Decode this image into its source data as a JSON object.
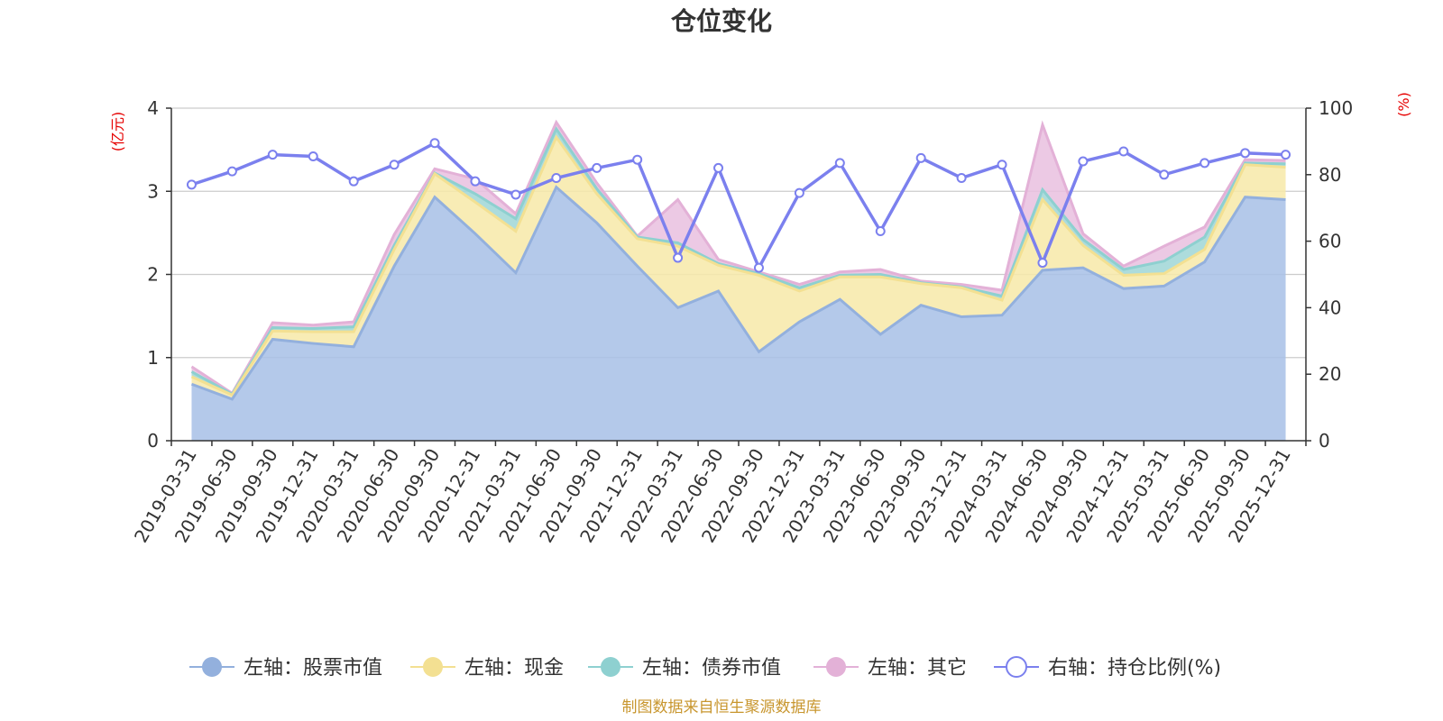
{
  "chart_data": {
    "type": "area",
    "title": "仓位变化",
    "categories": [
      "2019-03-31",
      "2019-06-30",
      "2019-09-30",
      "2019-12-31",
      "2020-03-31",
      "2020-06-30",
      "2020-09-30",
      "2020-12-31",
      "2021-03-31",
      "2021-06-30",
      "2021-09-30",
      "2021-12-31",
      "2022-03-31",
      "2022-06-30",
      "2022-09-30",
      "2022-12-31",
      "2023-03-31",
      "2023-06-30",
      "2023-09-30",
      "2023-12-31",
      "2024-03-31",
      "2024-06-30",
      "2024-09-30",
      "2024-12-31",
      "2025-03-31",
      "2025-06-30",
      "2025-09-30",
      "2025-12-31"
    ],
    "left_axis": {
      "unit": "(亿元)",
      "ylim": [
        0,
        4
      ],
      "ticks": [
        "0",
        "1",
        "2",
        "3",
        "4"
      ]
    },
    "right_axis": {
      "unit": "(%)",
      "ylim": [
        0,
        100
      ],
      "ticks": [
        "0",
        "20",
        "40",
        "60",
        "80",
        "100"
      ]
    },
    "series": [
      {
        "name": "左轴：股票市值",
        "axis": "left",
        "stacked": true,
        "color": "#a7bfe6",
        "line_color": "#93b0dd",
        "values": [
          0.68,
          0.5,
          1.22,
          1.17,
          1.13,
          2.1,
          2.93,
          2.49,
          2.02,
          3.05,
          2.62,
          2.1,
          1.6,
          1.8,
          1.07,
          1.43,
          1.7,
          1.28,
          1.63,
          1.49,
          1.51,
          2.05,
          2.08,
          1.83,
          1.86,
          2.15,
          2.93,
          2.9
        ]
      },
      {
        "name": "左轴：现金",
        "axis": "left",
        "stacked": true,
        "color": "#f7e9a8",
        "line_color": "#f3e092",
        "values": [
          0.09,
          0.05,
          0.1,
          0.14,
          0.18,
          0.2,
          0.28,
          0.38,
          0.5,
          0.6,
          0.35,
          0.33,
          0.74,
          0.31,
          0.92,
          0.37,
          0.27,
          0.69,
          0.26,
          0.35,
          0.18,
          0.85,
          0.27,
          0.16,
          0.15,
          0.15,
          0.39,
          0.39
        ]
      },
      {
        "name": "左轴：债券市值",
        "axis": "left",
        "stacked": true,
        "color": "#9fd6d6",
        "line_color": "#8ed0d0",
        "values": [
          0.06,
          0.01,
          0.04,
          0.04,
          0.06,
          0.05,
          0.01,
          0.1,
          0.15,
          0.1,
          0.06,
          0.02,
          0.04,
          0.02,
          0.02,
          0.04,
          0.02,
          0.03,
          0.01,
          0.01,
          0.05,
          0.12,
          0.07,
          0.07,
          0.15,
          0.15,
          0.02,
          0.04
        ]
      },
      {
        "name": "左轴：其它",
        "axis": "left",
        "stacked": true,
        "color": "#e9bfdf",
        "line_color": "#e3b1d7",
        "values": [
          0.06,
          0.01,
          0.06,
          0.04,
          0.06,
          0.13,
          0.05,
          0.18,
          0.06,
          0.08,
          0.07,
          0.01,
          0.52,
          0.05,
          0.02,
          0.04,
          0.04,
          0.06,
          0.02,
          0.03,
          0.07,
          0.78,
          0.07,
          0.04,
          0.18,
          0.12,
          0.04,
          0.04
        ]
      },
      {
        "name": "右轴：持仓比例(%)",
        "axis": "right",
        "type": "line",
        "color": "#7b80ee",
        "values": [
          77,
          81,
          86,
          85.5,
          78,
          83,
          89.5,
          78,
          74,
          79,
          82,
          84.5,
          55,
          82,
          52,
          74.5,
          83.5,
          63,
          85,
          79,
          83,
          53.5,
          84,
          87,
          80,
          83.5,
          86.5,
          86
        ]
      }
    ]
  },
  "footer": {
    "source": "制图数据来自恒生聚源数据库"
  }
}
